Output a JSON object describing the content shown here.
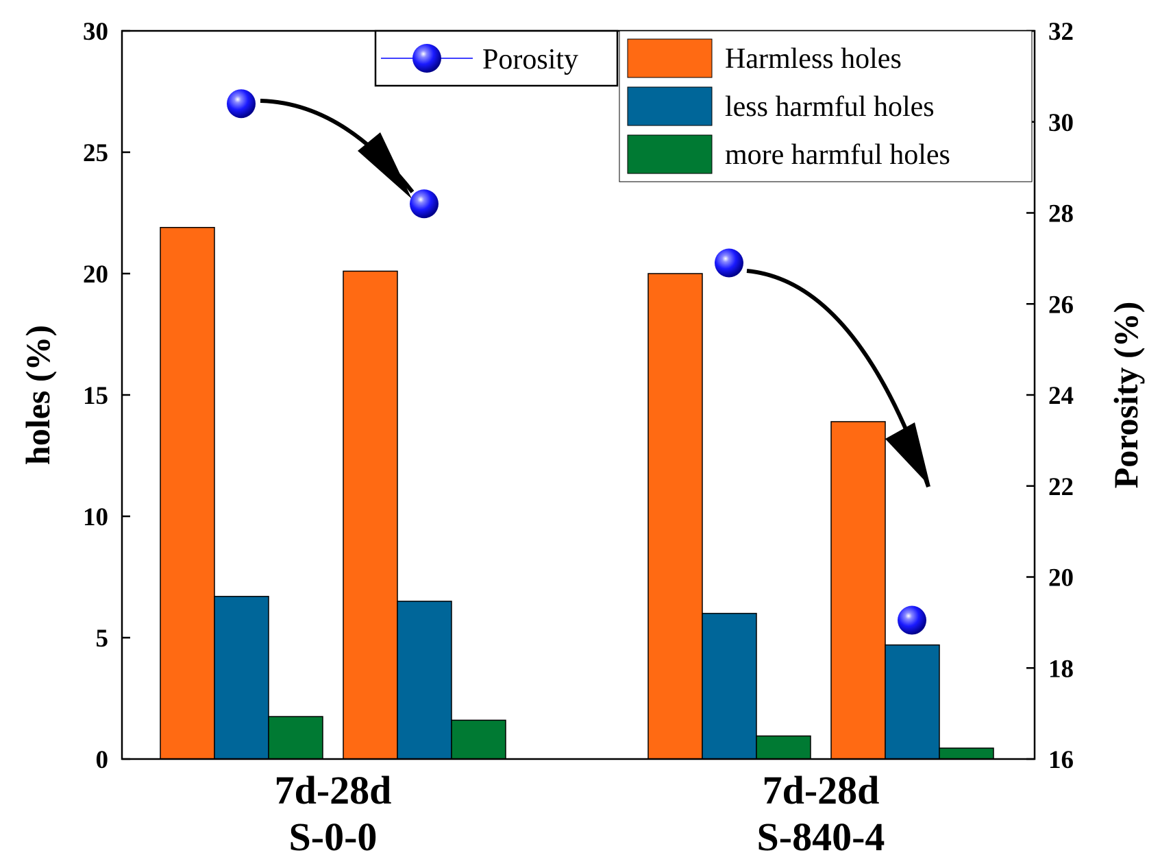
{
  "chart_data": {
    "type": "bar",
    "groups": [
      {
        "line1": "7d-28d",
        "line2": "S-0-0"
      },
      {
        "line1": "7d-28d",
        "line2": "S-840-4"
      }
    ],
    "bars_per_group": 2,
    "series": [
      {
        "name": "Harmless holes",
        "color": "#ff6a13",
        "values": [
          21.9,
          20.1,
          20.0,
          13.9
        ]
      },
      {
        "name": "less harmful holes",
        "color": "#006699",
        "values": [
          6.7,
          6.5,
          6.0,
          4.7
        ]
      },
      {
        "name": "more harmful holes",
        "color": "#007a33",
        "values": [
          1.75,
          1.6,
          0.95,
          0.45
        ]
      }
    ],
    "porosity": {
      "name": "Porosity",
      "color": "#0000ff",
      "values": [
        30.4,
        28.2,
        26.9,
        19.05
      ]
    },
    "ylabel_left": "holes (%)",
    "ylabel_right": "Porosity (%)",
    "ylim_left": [
      0,
      30
    ],
    "ylim_right": [
      16,
      32
    ],
    "yticks_left": [
      "0",
      "5",
      "10",
      "15",
      "20",
      "25",
      "30"
    ],
    "yticks_right": [
      "16",
      "18",
      "20",
      "22",
      "24",
      "26",
      "28",
      "30",
      "32"
    ],
    "arrows": "decrease arrows from 7d to 28d porosity in each group",
    "legend_position": "top-right"
  }
}
